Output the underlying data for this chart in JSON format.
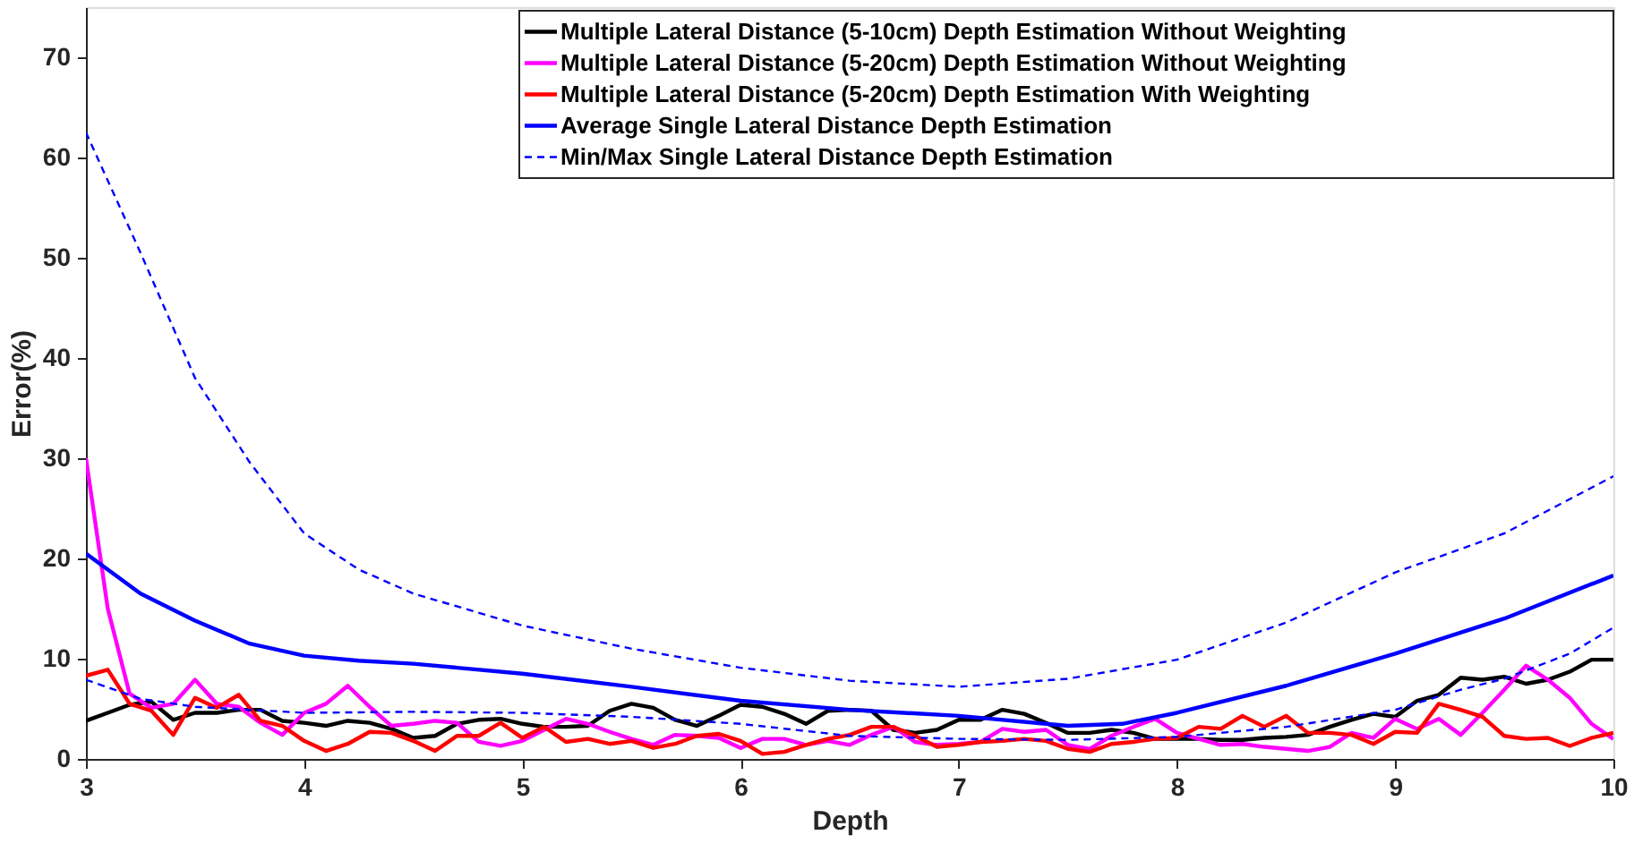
{
  "chart_data": {
    "type": "line",
    "xlabel": "Depth",
    "ylabel": "Error(%)",
    "xlim": [
      3,
      10
    ],
    "ylim": [
      0,
      75
    ],
    "xticks": [
      3,
      4,
      5,
      6,
      7,
      8,
      9,
      10
    ],
    "yticks": [
      0,
      10,
      20,
      30,
      40,
      50,
      60,
      70
    ],
    "grid": false,
    "legend": "top right",
    "marker": "none",
    "series": [
      {
        "name": "Multiple Lateral Distance (5-10cm) Depth Estimation Without Weighting",
        "color": "#000000",
        "line_style": "solid",
        "x": [
          3.0,
          3.1,
          3.2,
          3.3,
          3.4,
          3.5,
          3.6,
          3.7,
          3.8,
          3.9,
          4.0,
          4.1,
          4.2,
          4.3,
          4.4,
          4.5,
          4.6,
          4.7,
          4.8,
          4.9,
          5.0,
          5.1,
          5.2,
          5.3,
          5.4,
          5.5,
          5.6,
          5.7,
          5.8,
          5.9,
          6.0,
          6.1,
          6.2,
          6.3,
          6.4,
          6.5,
          6.6,
          6.7,
          6.8,
          6.9,
          7.0,
          7.1,
          7.2,
          7.3,
          7.4,
          7.5,
          7.6,
          7.7,
          7.8,
          7.9,
          8.0,
          8.1,
          8.2,
          8.3,
          8.4,
          8.5,
          8.6,
          8.7,
          8.8,
          8.9,
          9.0,
          9.1,
          9.2,
          9.3,
          9.4,
          9.5,
          9.6,
          9.7,
          9.8,
          9.9,
          10.0
        ],
        "values": [
          3.8,
          4.6,
          5.4,
          5.7,
          3.9,
          4.6,
          4.6,
          4.9,
          4.9,
          3.8,
          3.6,
          3.3,
          3.8,
          3.6,
          3.0,
          2.1,
          2.3,
          3.5,
          3.9,
          4.0,
          3.5,
          3.2,
          3.2,
          3.3,
          4.8,
          5.5,
          5.1,
          3.9,
          3.3,
          4.3,
          5.4,
          5.2,
          4.5,
          3.5,
          4.8,
          4.9,
          4.8,
          2.9,
          2.6,
          2.9,
          3.9,
          3.9,
          4.9,
          4.5,
          3.6,
          2.6,
          2.6,
          2.9,
          2.6,
          2.0,
          2.0,
          2.0,
          1.9,
          1.9,
          2.1,
          2.2,
          2.4,
          3.2,
          3.9,
          4.5,
          4.2,
          5.8,
          6.4,
          8.1,
          7.9,
          8.2,
          7.5,
          7.9,
          8.7,
          9.9,
          9.9
        ]
      },
      {
        "name": "Multiple Lateral Distance (5-20cm) Depth Estimation Without Weighting",
        "color": "#ff00ff",
        "line_style": "solid",
        "x": [
          3.0,
          3.1,
          3.2,
          3.3,
          3.4,
          3.5,
          3.6,
          3.7,
          3.8,
          3.9,
          4.0,
          4.1,
          4.2,
          4.3,
          4.4,
          4.5,
          4.6,
          4.7,
          4.8,
          4.9,
          5.0,
          5.1,
          5.2,
          5.3,
          5.4,
          5.5,
          5.6,
          5.7,
          5.8,
          5.9,
          6.0,
          6.1,
          6.2,
          6.3,
          6.4,
          6.5,
          6.6,
          6.7,
          6.8,
          6.9,
          7.0,
          7.1,
          7.2,
          7.3,
          7.4,
          7.5,
          7.6,
          7.7,
          7.8,
          7.9,
          8.0,
          8.1,
          8.2,
          8.3,
          8.4,
          8.5,
          8.6,
          8.7,
          8.8,
          8.9,
          9.0,
          9.1,
          9.2,
          9.3,
          9.4,
          9.5,
          9.6,
          9.7,
          9.8,
          9.9,
          10.0
        ],
        "values": [
          30,
          15,
          6.5,
          5.1,
          5.5,
          7.9,
          5.5,
          5.2,
          3.6,
          2.4,
          4.6,
          5.5,
          7.3,
          5.2,
          3.3,
          3.5,
          3.8,
          3.6,
          1.7,
          1.3,
          1.8,
          2.9,
          4.0,
          3.5,
          2.7,
          2.0,
          1.4,
          2.4,
          2.3,
          2.1,
          1.1,
          2.0,
          2.0,
          1.4,
          1.8,
          1.4,
          2.4,
          3.2,
          1.7,
          1.4,
          1.5,
          1.7,
          3.0,
          2.7,
          2.9,
          1.4,
          1.0,
          2.3,
          3.2,
          4.0,
          2.6,
          2.0,
          1.4,
          1.5,
          1.2,
          1.0,
          0.8,
          1.2,
          2.6,
          2.1,
          4.0,
          3.0,
          4.0,
          2.4,
          4.6,
          6.9,
          9.3,
          7.9,
          6.1,
          3.5,
          2.0
        ]
      },
      {
        "name": "Multiple Lateral Distance (5-20cm) Depth Estimation With Weighting",
        "color": "#ff0000",
        "line_style": "solid",
        "x": [
          3.0,
          3.1,
          3.2,
          3.3,
          3.4,
          3.5,
          3.6,
          3.7,
          3.8,
          3.9,
          4.0,
          4.1,
          4.2,
          4.3,
          4.4,
          4.5,
          4.6,
          4.7,
          4.8,
          4.9,
          5.0,
          5.1,
          5.2,
          5.3,
          5.4,
          5.5,
          5.6,
          5.7,
          5.8,
          5.9,
          6.0,
          6.1,
          6.2,
          6.3,
          6.4,
          6.5,
          6.6,
          6.7,
          6.8,
          6.9,
          7.0,
          7.1,
          7.2,
          7.3,
          7.4,
          7.5,
          7.6,
          7.7,
          7.8,
          7.9,
          8.0,
          8.1,
          8.2,
          8.3,
          8.4,
          8.5,
          8.6,
          8.7,
          8.8,
          8.9,
          9.0,
          9.1,
          9.2,
          9.3,
          9.4,
          9.5,
          9.6,
          9.7,
          9.8,
          9.9,
          10.0
        ],
        "values": [
          8.3,
          8.9,
          5.5,
          4.8,
          2.4,
          6.1,
          5.1,
          6.4,
          3.8,
          3.3,
          1.8,
          0.8,
          1.5,
          2.7,
          2.6,
          1.8,
          0.8,
          2.3,
          2.3,
          3.6,
          2.1,
          3.2,
          1.7,
          2.0,
          1.5,
          1.8,
          1.1,
          1.5,
          2.3,
          2.5,
          1.8,
          0.5,
          0.7,
          1.4,
          2.0,
          2.4,
          3.2,
          3.2,
          2.3,
          1.2,
          1.4,
          1.7,
          1.8,
          2.0,
          1.8,
          1.0,
          0.7,
          1.5,
          1.7,
          2.0,
          2.1,
          3.2,
          3.0,
          4.3,
          3.2,
          4.3,
          2.6,
          2.6,
          2.4,
          1.5,
          2.7,
          2.6,
          5.5,
          4.9,
          4.2,
          2.3,
          2.0,
          2.1,
          1.3,
          2.1,
          2.6
        ]
      },
      {
        "name": "Average Single Lateral Distance Depth Estimation",
        "color": "#0000ff",
        "line_style": "solid",
        "x": [
          3.0,
          3.25,
          3.5,
          3.75,
          4.0,
          4.25,
          4.5,
          5.0,
          5.5,
          6.0,
          6.5,
          7.0,
          7.5,
          7.75,
          8.0,
          8.5,
          9.0,
          9.5,
          10.0
        ],
        "values": [
          20.5,
          16.5,
          13.8,
          11.5,
          10.3,
          9.8,
          9.5,
          8.5,
          7.2,
          5.8,
          4.9,
          4.3,
          3.3,
          3.5,
          4.6,
          7.3,
          10.5,
          14.0,
          18.3
        ]
      },
      {
        "name": "Min/Max Single Lateral Distance Depth Estimation",
        "color": "#0000ff",
        "line_style": "dashed",
        "x": [
          3.0,
          3.25,
          3.5,
          3.75,
          4.0,
          4.25,
          4.5,
          5.0,
          5.5,
          6.0,
          6.5,
          7.0,
          7.5,
          8.0,
          8.5,
          9.0,
          9.5,
          10.0
        ],
        "values": [
          62.5,
          50.5,
          38.0,
          29.6,
          22.5,
          18.9,
          16.5,
          13.3,
          11.0,
          9.1,
          7.8,
          7.2,
          8.0,
          9.9,
          13.6,
          18.6,
          22.5,
          28.2
        ]
      },
      {
        "color": "#0000ff",
        "line_style": "dashed",
        "x": [
          3.0,
          3.25,
          3.5,
          4.0,
          4.5,
          5.0,
          5.5,
          6.0,
          6.5,
          7.0,
          7.5,
          8.0,
          8.5,
          9.0,
          9.3,
          9.5,
          9.8,
          10.0
        ],
        "values": [
          7.9,
          6.0,
          5.2,
          4.6,
          4.7,
          4.6,
          4.2,
          3.5,
          2.3,
          2.0,
          1.9,
          2.2,
          3.2,
          4.9,
          6.9,
          8.0,
          10.5,
          13.1
        ]
      }
    ]
  }
}
